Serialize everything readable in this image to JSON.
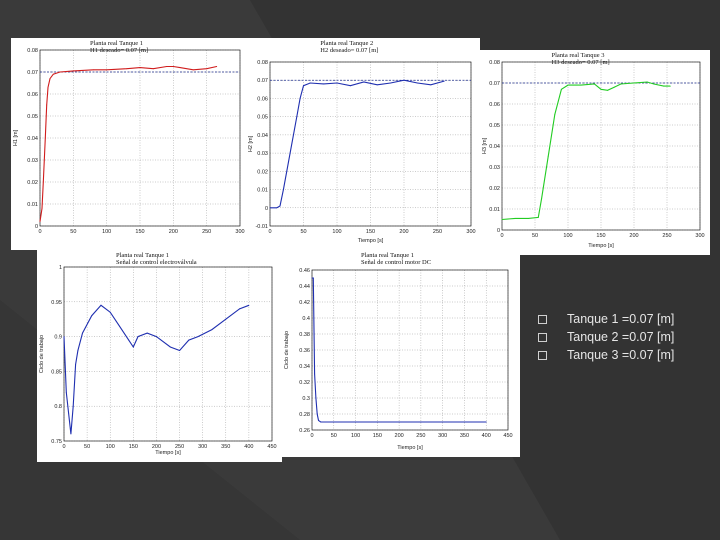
{
  "colors": {
    "background": "#3a3a3a",
    "panel": "#ffffff"
  },
  "bullets": [
    {
      "text": "Tanque 1 =0.07 [m]"
    },
    {
      "text": "Tanque 2 =0.07 [m]"
    },
    {
      "text": "Tanque 3 =0.07 [m]"
    }
  ],
  "chart_data": [
    {
      "type": "line",
      "title": "Planta real Tanque 1",
      "subtitle": "H1 deseado= 0.07 [m]",
      "xlabel": "",
      "ylabel": "H1 [m]",
      "xlim": [
        0,
        300
      ],
      "ylim": [
        0,
        0.08
      ],
      "xticks": [
        "0",
        "50",
        "100",
        "150",
        "200",
        "250",
        "300"
      ],
      "yticks": [
        "0",
        "0.01",
        "0.02",
        "0.03",
        "0.04",
        "0.05",
        "0.06",
        "0.07",
        "0.08"
      ],
      "grid": true,
      "color": "#d01c1c",
      "reference": 0.07,
      "x": [
        0,
        3,
        5,
        8,
        10,
        12,
        15,
        20,
        30,
        50,
        80,
        100,
        130,
        150,
        170,
        190,
        200,
        210,
        230,
        250,
        265
      ],
      "y": [
        0.002,
        0.008,
        0.02,
        0.04,
        0.055,
        0.063,
        0.067,
        0.069,
        0.07,
        0.0705,
        0.071,
        0.071,
        0.0715,
        0.072,
        0.0715,
        0.0725,
        0.0725,
        0.072,
        0.071,
        0.0715,
        0.0725
      ]
    },
    {
      "type": "line",
      "title": "Planta real Tanque 2",
      "subtitle": "H2 deseado= 0.07 [m]",
      "xlabel": "Tiempo [s]",
      "ylabel": "H2 [m]",
      "xlim": [
        0,
        300
      ],
      "ylim": [
        -0.01,
        0.08
      ],
      "xticks": [
        "0",
        "50",
        "100",
        "150",
        "200",
        "250",
        "300"
      ],
      "yticks": [
        "-0.01",
        "0",
        "0.01",
        "0.02",
        "0.03",
        "0.04",
        "0.05",
        "0.06",
        "0.07",
        "0.08"
      ],
      "grid": true,
      "color": "#1f2fb0",
      "reference": 0.07,
      "x": [
        0,
        10,
        15,
        20,
        30,
        40,
        45,
        50,
        60,
        80,
        100,
        120,
        140,
        160,
        180,
        200,
        220,
        240,
        260
      ],
      "y": [
        0,
        0,
        0.001,
        0.01,
        0.03,
        0.05,
        0.06,
        0.067,
        0.0685,
        0.068,
        0.0685,
        0.067,
        0.069,
        0.0675,
        0.0685,
        0.07,
        0.0685,
        0.0675,
        0.0695
      ]
    },
    {
      "type": "line",
      "title": "Planta real Tanque 3",
      "subtitle": "H3 deseado= 0.07 [m]",
      "xlabel": "Tiempo [s]",
      "ylabel": "H3 [m]",
      "xlim": [
        0,
        300
      ],
      "ylim": [
        0,
        0.08
      ],
      "xticks": [
        "0",
        "50",
        "100",
        "150",
        "200",
        "250",
        "300"
      ],
      "yticks": [
        "0",
        "0.01",
        "0.02",
        "0.03",
        "0.04",
        "0.05",
        "0.06",
        "0.07",
        "0.08"
      ],
      "grid": true,
      "color": "#22cc22",
      "reference": 0.07,
      "x": [
        0,
        20,
        40,
        55,
        60,
        70,
        80,
        90,
        100,
        120,
        140,
        150,
        160,
        170,
        180,
        200,
        220,
        230,
        245,
        255
      ],
      "y": [
        0.005,
        0.0055,
        0.0055,
        0.006,
        0.015,
        0.035,
        0.055,
        0.067,
        0.069,
        0.069,
        0.0695,
        0.067,
        0.0665,
        0.068,
        0.0695,
        0.07,
        0.0705,
        0.0695,
        0.0685,
        0.0685
      ]
    },
    {
      "type": "line",
      "title": "Planta real Tanque 1",
      "subtitle": "Señal de control electroválvula",
      "xlabel": "Tiempo [s]",
      "ylabel": "Ciclo de trabajo",
      "xlim": [
        0,
        450
      ],
      "ylim": [
        0.75,
        1.0
      ],
      "xticks": [
        "0",
        "50",
        "100",
        "150",
        "200",
        "250",
        "300",
        "350",
        "400",
        "450"
      ],
      "yticks": [
        "0.75",
        "0.8",
        "0.85",
        "0.9",
        "0.95",
        "1"
      ],
      "grid": true,
      "color": "#1f2fb0",
      "x": [
        0,
        5,
        10,
        15,
        20,
        25,
        30,
        40,
        60,
        80,
        100,
        120,
        140,
        150,
        160,
        180,
        200,
        230,
        250,
        270,
        290,
        320,
        350,
        380,
        400
      ],
      "y": [
        0.9,
        0.82,
        0.79,
        0.76,
        0.8,
        0.86,
        0.88,
        0.905,
        0.93,
        0.945,
        0.935,
        0.915,
        0.895,
        0.885,
        0.9,
        0.905,
        0.9,
        0.885,
        0.88,
        0.895,
        0.9,
        0.91,
        0.925,
        0.94,
        0.945
      ]
    },
    {
      "type": "line",
      "title": "Planta real Tanque 1",
      "subtitle": "Señal de control motor DC",
      "xlabel": "Tiempo [s]",
      "ylabel": "Ciclo de trabajo",
      "xlim": [
        0,
        450
      ],
      "ylim": [
        0.26,
        0.46
      ],
      "xticks": [
        "0",
        "50",
        "100",
        "150",
        "200",
        "250",
        "300",
        "350",
        "400",
        "450"
      ],
      "yticks": [
        "0.26",
        "0.28",
        "0.3",
        "0.32",
        "0.34",
        "0.36",
        "0.38",
        "0.4",
        "0.42",
        "0.44",
        "0.46"
      ],
      "grid": true,
      "color": "#1f2fb0",
      "x": [
        0,
        3,
        6,
        9,
        12,
        15,
        20,
        30,
        100,
        200,
        300,
        400
      ],
      "y": [
        0.45,
        0.45,
        0.33,
        0.3,
        0.28,
        0.272,
        0.27,
        0.27,
        0.27,
        0.27,
        0.27,
        0.27
      ]
    }
  ]
}
